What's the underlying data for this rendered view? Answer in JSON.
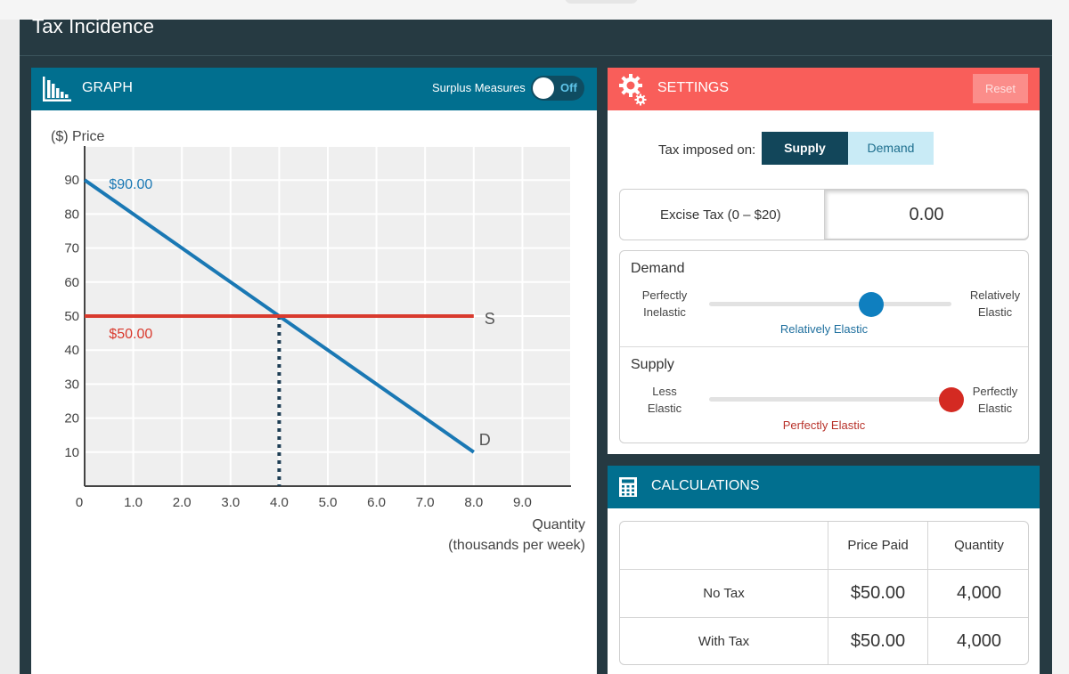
{
  "app": {
    "title": "Tax Incidence"
  },
  "graph": {
    "header_title": "GRAPH",
    "surplus_label": "Surplus Measures",
    "toggle_state": "Off",
    "ylabel": "($) Price",
    "xlabel_line1": "Quantity",
    "xlabel_line2": "(thousands per week)",
    "demand_label": "D",
    "supply_label": "S",
    "demand_intercept_label": "$90.00",
    "equilibrium_price_label": "$50.00"
  },
  "chart_data": {
    "type": "line",
    "xlim": [
      0,
      10
    ],
    "ylim": [
      0,
      100
    ],
    "x_ticks": [
      0,
      1.0,
      2.0,
      3.0,
      4.0,
      5.0,
      6.0,
      7.0,
      8.0,
      9.0
    ],
    "x_tick_labels": [
      "0",
      "1.0",
      "2.0",
      "3.0",
      "4.0",
      "5.0",
      "6.0",
      "7.0",
      "8.0",
      "9.0"
    ],
    "y_ticks": [
      10,
      20,
      30,
      40,
      50,
      60,
      70,
      80,
      90
    ],
    "y_tick_labels": [
      "10",
      "20",
      "30",
      "40",
      "50",
      "60",
      "70",
      "80",
      "90"
    ],
    "grid": true,
    "series": [
      {
        "name": "D",
        "color": "#1a78b4",
        "x": [
          0,
          8
        ],
        "y": [
          90,
          10
        ]
      },
      {
        "name": "S",
        "color": "#d93a2e",
        "x": [
          0,
          8
        ],
        "y": [
          50,
          50
        ]
      }
    ],
    "equilibrium": {
      "x": 4.0,
      "y": 50
    }
  },
  "settings": {
    "header_title": "SETTINGS",
    "reset_label": "Reset",
    "tax_imposed_label": "Tax imposed on:",
    "tax_options": [
      "Supply",
      "Demand"
    ],
    "tax_selected": "Supply",
    "excise_label": "Excise Tax (0 – $20)",
    "excise_value": "0.00",
    "demand": {
      "title": "Demand",
      "left_line1": "Perfectly",
      "left_line2": "Inelastic",
      "right_line1": "Relatively",
      "right_line2": "Elastic",
      "value_label": "Relatively Elastic",
      "position": 0.67,
      "color": "#0f7fbf"
    },
    "supply": {
      "title": "Supply",
      "left_line1": "Less",
      "left_line2": "Elastic",
      "right_line1": "Perfectly",
      "right_line2": "Elastic",
      "value_label": "Perfectly Elastic",
      "position": 1.0,
      "color": "#d42a22"
    }
  },
  "calculations": {
    "header_title": "CALCULATIONS",
    "columns": [
      "",
      "Price Paid",
      "Quantity"
    ],
    "rows": [
      {
        "label": "No Tax",
        "price": "$50.00",
        "quantity": "4,000"
      },
      {
        "label": "With Tax",
        "price": "$50.00",
        "quantity": "4,000"
      }
    ]
  }
}
